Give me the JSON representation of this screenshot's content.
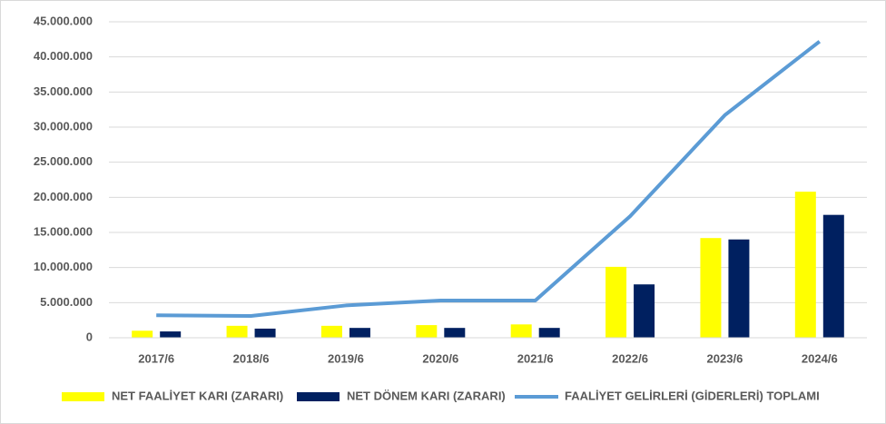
{
  "chart_data": {
    "type": "combo",
    "categories": [
      "2017/6",
      "2018/6",
      "2019/6",
      "2020/6",
      "2021/6",
      "2022/6",
      "2023/6",
      "2024/6"
    ],
    "series": [
      {
        "name": "NET FAALİYET KARI (ZARARI)",
        "type": "bar",
        "color": "#ffff00",
        "values": [
          1000000,
          1700000,
          1700000,
          1800000,
          1900000,
          10100000,
          14200000,
          20800000
        ]
      },
      {
        "name": "NET DÖNEM KARI (ZARARI)",
        "type": "bar",
        "color": "#002060",
        "values": [
          900000,
          1300000,
          1400000,
          1400000,
          1400000,
          7600000,
          14000000,
          17500000
        ]
      },
      {
        "name": "FAALİYET GELİRLERİ (GİDERLERİ) TOPLAMI",
        "type": "line",
        "color": "#5b9bd5",
        "values": [
          3200000,
          3100000,
          4600000,
          5300000,
          5300000,
          17300000,
          31700000,
          42200000
        ]
      }
    ],
    "ylim": [
      0,
      45000000
    ],
    "yticks": [
      0,
      {
        "value": 5000000,
        "label": "5.000.000"
      },
      {
        "value": 10000000,
        "label": "10.000.000"
      },
      {
        "value": 15000000,
        "label": "15.000.000"
      },
      {
        "value": 20000000,
        "label": "20.000.000"
      },
      {
        "value": 25000000,
        "label": "25.000.000"
      },
      {
        "value": 30000000,
        "label": "30.000.000"
      },
      {
        "value": 35000000,
        "label": "35.000.000"
      },
      {
        "value": 40000000,
        "label": "40.000.000"
      },
      {
        "value": 45000000,
        "label": "45.000.000"
      }
    ],
    "grid": true,
    "legend": "bottom"
  }
}
